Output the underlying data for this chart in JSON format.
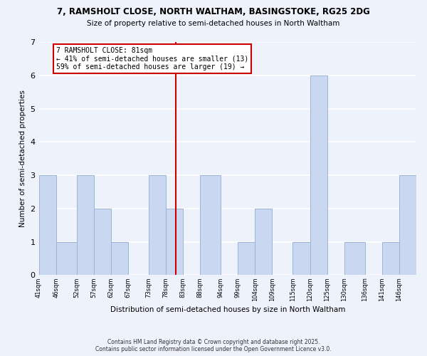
{
  "title_line1": "7, RAMSHOLT CLOSE, NORTH WALTHAM, BASINGSTOKE, RG25 2DG",
  "title_line2": "Size of property relative to semi-detached houses in North Waltham",
  "xlabel": "Distribution of semi-detached houses by size in North Waltham",
  "ylabel": "Number of semi-detached properties",
  "bar_edges": [
    41,
    46,
    52,
    57,
    62,
    67,
    73,
    78,
    83,
    88,
    94,
    99,
    104,
    109,
    115,
    120,
    125,
    130,
    136,
    141,
    146
  ],
  "bar_heights": [
    3,
    1,
    3,
    2,
    1,
    0,
    3,
    2,
    0,
    3,
    0,
    1,
    2,
    0,
    1,
    6,
    0,
    1,
    0,
    1,
    3
  ],
  "bar_color": "#c9d8f0",
  "bar_edgecolor": "#9ab4d8",
  "property_value": 81,
  "annotation_title": "7 RAMSHOLT CLOSE: 81sqm",
  "annotation_line2": "← 41% of semi-detached houses are smaller (13)",
  "annotation_line3": "59% of semi-detached houses are larger (19) →",
  "vline_color": "#cc0000",
  "ylim": [
    0,
    7
  ],
  "yticks": [
    0,
    1,
    2,
    3,
    4,
    5,
    6,
    7
  ],
  "tick_labels": [
    "41sqm",
    "46sqm",
    "52sqm",
    "57sqm",
    "62sqm",
    "67sqm",
    "73sqm",
    "78sqm",
    "83sqm",
    "88sqm",
    "94sqm",
    "99sqm",
    "104sqm",
    "109sqm",
    "115sqm",
    "120sqm",
    "125sqm",
    "130sqm",
    "136sqm",
    "141sqm",
    "146sqm"
  ],
  "footnote1": "Contains HM Land Registry data © Crown copyright and database right 2025.",
  "footnote2": "Contains public sector information licensed under the Open Government Licence v3.0.",
  "bg_color": "#eef2fb",
  "grid_color": "#ffffff",
  "annotation_box_facecolor": "#ffffff",
  "annotation_box_edgecolor": "#cc0000"
}
